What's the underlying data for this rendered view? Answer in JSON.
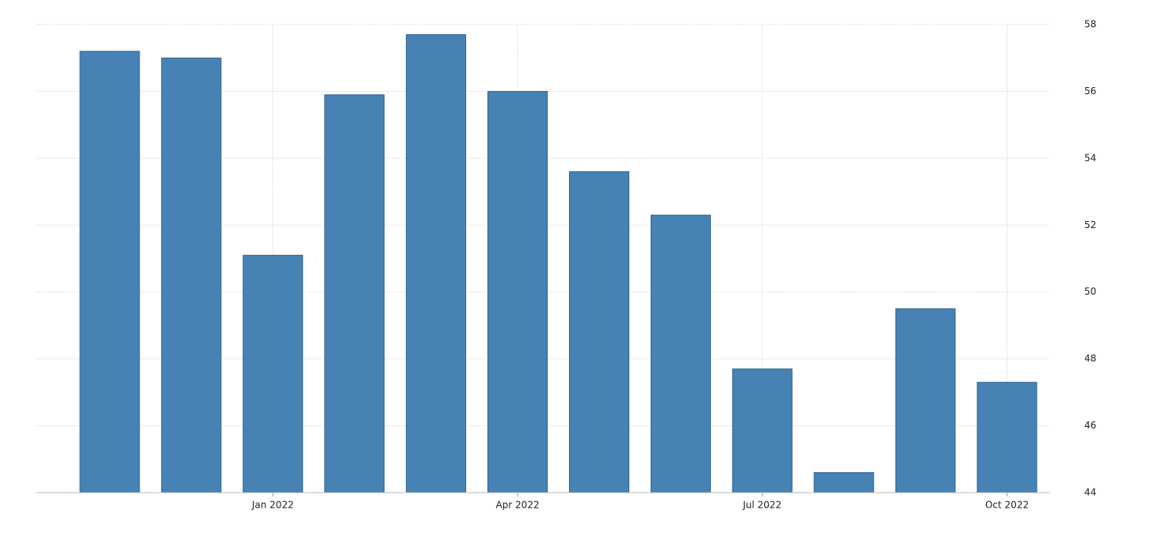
{
  "chart_data": {
    "type": "bar",
    "categories": [
      null,
      null,
      "Jan 2022",
      null,
      null,
      "Apr 2022",
      null,
      null,
      "Jul 2022",
      null,
      null,
      "Oct 2022"
    ],
    "values": [
      57.2,
      57.0,
      51.1,
      55.9,
      57.7,
      56.0,
      53.6,
      52.3,
      47.7,
      44.6,
      49.5,
      47.3
    ],
    "color": "#4682b4",
    "ylim": [
      44,
      58
    ],
    "yticks": [
      44,
      46,
      48,
      50,
      52,
      54,
      56,
      58
    ],
    "grid": true
  }
}
